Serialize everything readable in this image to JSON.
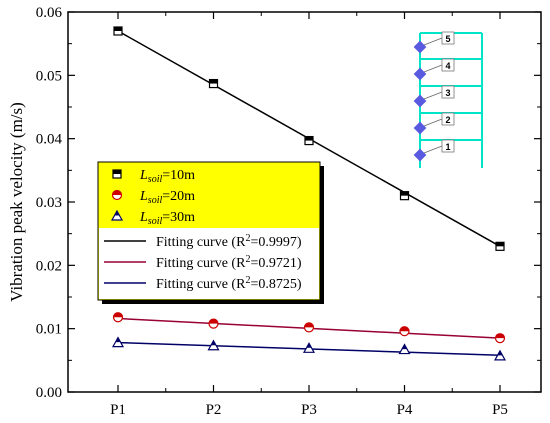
{
  "chart_data": {
    "type": "line",
    "categories": [
      "P1",
      "P2",
      "P3",
      "P4",
      "P5"
    ],
    "ylabel": "Vibration peak velocity (m/s)",
    "xlabel": "",
    "ylim": [
      0.0,
      0.06
    ],
    "yticks": [
      "0.00",
      "0.01",
      "0.02",
      "0.03",
      "0.04",
      "0.05",
      "0.06"
    ],
    "series": [
      {
        "name_prefix": "L",
        "name_sub": "soil",
        "name_suffix": "=10m",
        "values": [
          0.057,
          0.0487,
          0.0397,
          0.031,
          0.023
        ],
        "marker": "square",
        "color": "#000000",
        "fill": "#ffffff"
      },
      {
        "name_prefix": "L",
        "name_sub": "soil",
        "name_suffix": "=20m",
        "values": [
          0.0118,
          0.0108,
          0.0102,
          0.0096,
          0.0085
        ],
        "marker": "circle",
        "color": "#cc0000",
        "fill": "#ffffff"
      },
      {
        "name_prefix": "L",
        "name_sub": "soil",
        "name_suffix": "=30m",
        "values": [
          0.0078,
          0.0073,
          0.0069,
          0.0067,
          0.0057
        ],
        "marker": "triangle",
        "color": "#000066",
        "fill": "#ffffff"
      }
    ],
    "fits": [
      {
        "text": "Fitting curve (R",
        "sup": "2",
        "r2": "=0.9997)",
        "color": "#000000",
        "from": 0.057,
        "to": 0.023
      },
      {
        "text": "Fitting curve (R",
        "sup": "2",
        "r2": "=0.9721)",
        "color": "#990033",
        "from": 0.0116,
        "to": 0.0085
      },
      {
        "text": "Fitting curve (R",
        "sup": "2",
        "r2": "=0.8725)",
        "color": "#000066",
        "from": 0.0078,
        "to": 0.0058
      }
    ],
    "legend_position": "center-left",
    "grid": false
  },
  "colors": {
    "legend_bg": "#ffff00",
    "building": "#00e5c8",
    "building_marker": "#5a5ae0"
  },
  "inset": {
    "labels": [
      "5",
      "4",
      "3",
      "2",
      "1"
    ]
  }
}
